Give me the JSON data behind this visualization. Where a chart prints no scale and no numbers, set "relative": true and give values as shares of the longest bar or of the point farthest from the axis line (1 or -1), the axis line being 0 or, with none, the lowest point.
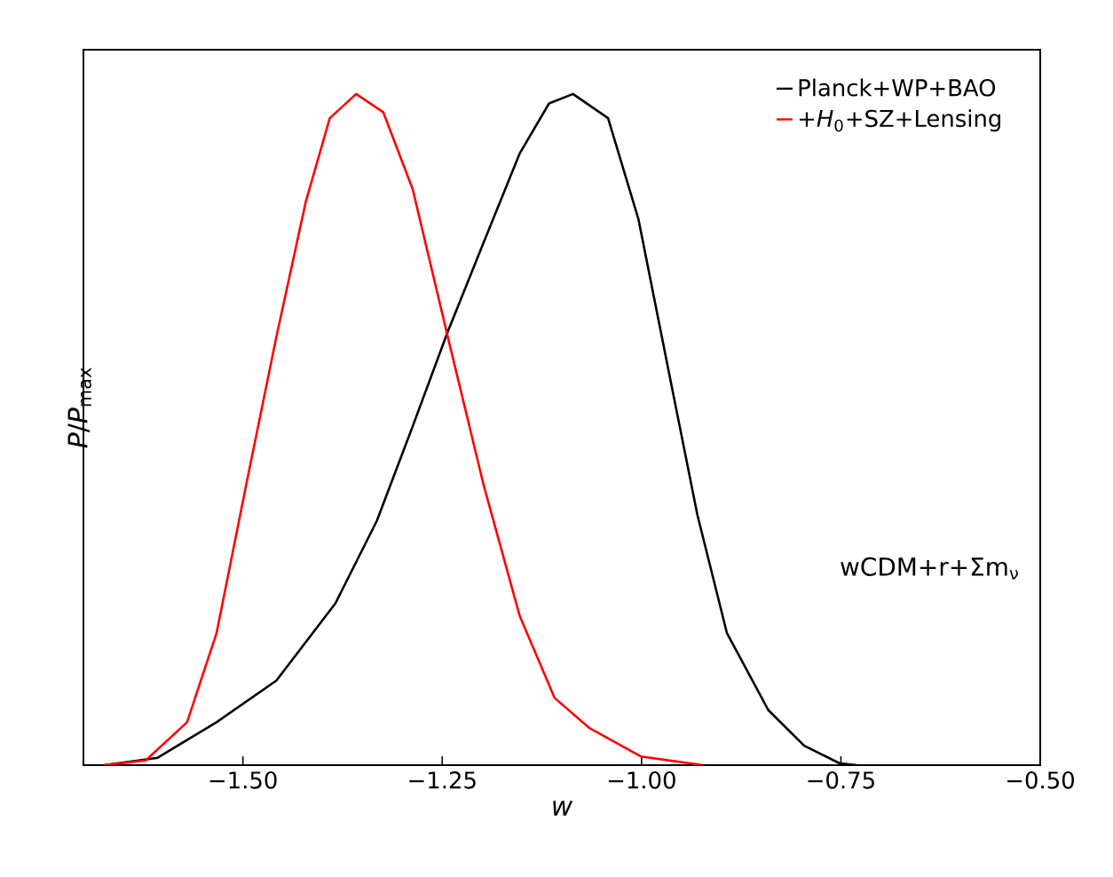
{
  "chart_data": {
    "type": "line",
    "xlabel": "*w*",
    "ylabel": "*P*/*P*$_{max}$",
    "relative": true,
    "xlim": [
      -1.7,
      -0.5
    ],
    "xticks": [
      {
        "value": -1.5,
        "label": "−1.50"
      },
      {
        "value": -1.25,
        "label": "−1.25"
      },
      {
        "value": -1.0,
        "label": "−1.00"
      },
      {
        "value": -0.75,
        "label": "−0.75"
      },
      {
        "value": -0.5,
        "label": "−0.50"
      }
    ],
    "tick_labels": "x",
    "legend": "top right",
    "marker": "none",
    "line_style": "solid",
    "grid": false,
    "annotations": [
      "wCDM+r+Σm$_{ν}$"
    ],
    "series": [
      {
        "name": "Planck+WP+BAO",
        "color": "#000000",
        "x": [
          -1.674,
          -1.607,
          -1.533,
          -1.458,
          -1.384,
          -1.332,
          -1.287,
          -1.243,
          -1.198,
          -1.153,
          -1.116,
          -1.086,
          -1.042,
          -1.004,
          -0.967,
          -0.93,
          -0.893,
          -0.841,
          -0.796,
          -0.752,
          -0.73
        ],
        "values": [
          0,
          0.011,
          0.064,
          0.126,
          0.241,
          0.364,
          0.505,
          0.646,
          0.779,
          0.911,
          0.986,
          1.0,
          0.964,
          0.814,
          0.593,
          0.373,
          0.197,
          0.082,
          0.029,
          0.003,
          0
        ]
      },
      {
        "name": "+*H*$_{0}$+SZ+Lensing",
        "color": "#ff0000",
        "x": [
          -1.674,
          -1.622,
          -1.57,
          -1.533,
          -1.496,
          -1.458,
          -1.421,
          -1.391,
          -1.358,
          -1.324,
          -1.287,
          -1.243,
          -1.198,
          -1.153,
          -1.109,
          -1.065,
          -1.001,
          -0.923
        ],
        "values": [
          0,
          0.007,
          0.064,
          0.197,
          0.417,
          0.638,
          0.84,
          0.964,
          1.0,
          0.973,
          0.858,
          0.638,
          0.417,
          0.223,
          0.1,
          0.055,
          0.013,
          0
        ]
      }
    ]
  }
}
